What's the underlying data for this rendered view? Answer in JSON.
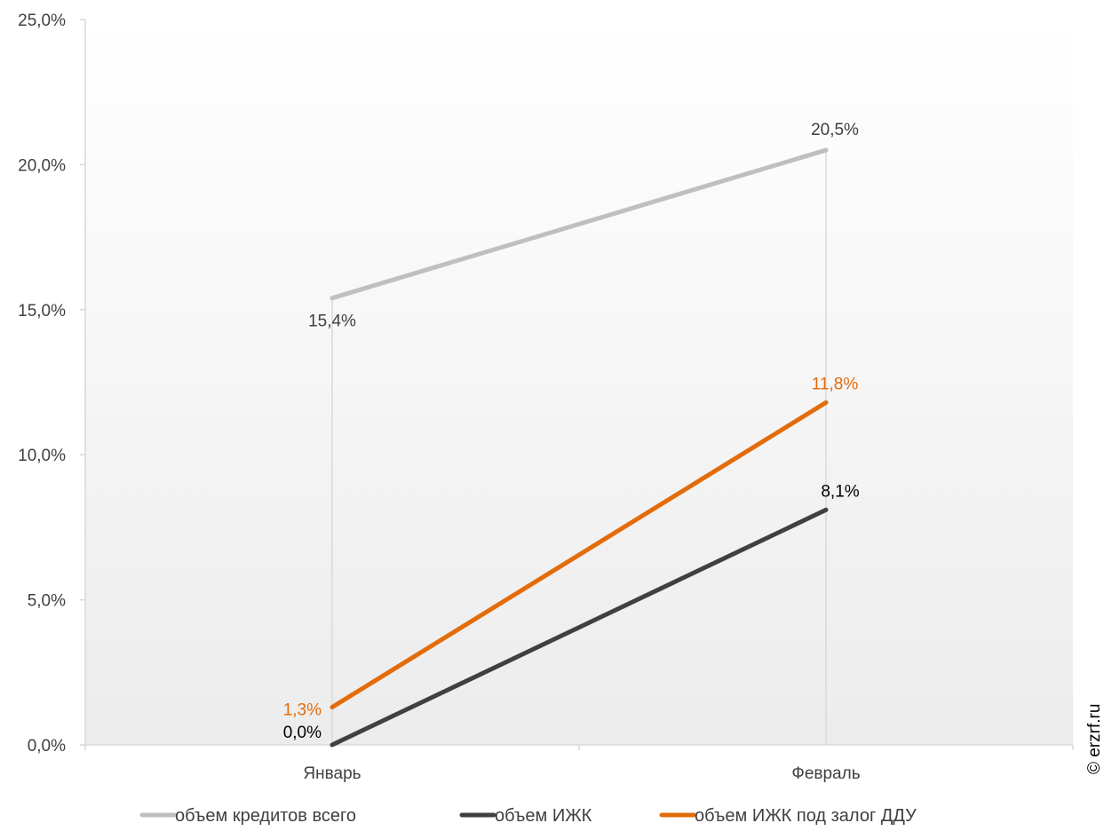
{
  "chart_data": {
    "type": "line",
    "categories": [
      "Январь",
      "Февраль"
    ],
    "ylim": [
      0,
      25
    ],
    "yticks": [
      "0,0%",
      "5,0%",
      "10,0%",
      "15,0%",
      "20,0%",
      "25,0%"
    ],
    "ytick_values": [
      0,
      5,
      10,
      15,
      20,
      25
    ],
    "grid": "vertical drop lines at data points",
    "legend_position": "bottom",
    "series": [
      {
        "name": "объем кредитов всего",
        "values": [
          15.4,
          20.5
        ],
        "labels": [
          "15,4%",
          "20,5%"
        ],
        "color": "#bfbfbf"
      },
      {
        "name": "объем ИЖК",
        "values": [
          0.0,
          8.1
        ],
        "labels": [
          "0,0%",
          "8,1%"
        ],
        "color": "#404040"
      },
      {
        "name": "объем ИЖК под залог ДДУ",
        "values": [
          1.3,
          11.8
        ],
        "labels": [
          "1,3%",
          "11,8%"
        ],
        "color": "#e36c0a"
      }
    ]
  },
  "watermark": "© erzrf.ru"
}
